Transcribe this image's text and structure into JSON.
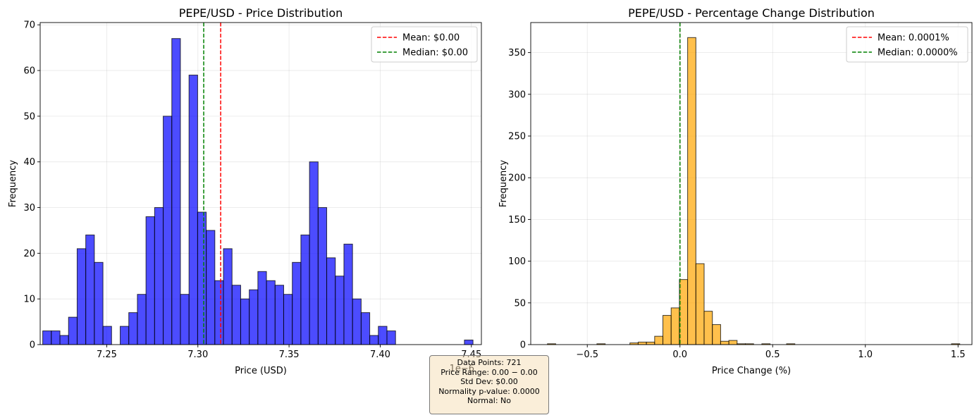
{
  "chart_data": [
    {
      "type": "bar",
      "title": "PEPE/USD - Price Distribution",
      "xlabel": "Price (USD)",
      "ylabel": "Frequency",
      "offset_label": "1e−6",
      "xlim": [
        7.2135,
        7.4555
      ],
      "ylim": [
        0,
        70.5
      ],
      "xticks": [
        7.25,
        7.3,
        7.35,
        7.4,
        7.45
      ],
      "xtick_labels": [
        "7.25",
        "7.30",
        "7.35",
        "7.40",
        "7.45"
      ],
      "yticks": [
        0,
        10,
        20,
        30,
        40,
        50,
        60,
        70
      ],
      "grid": true,
      "legend_position": "top-right",
      "bar_color": "#0000ff",
      "bin_start": 7.2149,
      "bin_width": 0.00472,
      "values": [
        3,
        3,
        2,
        6,
        21,
        24,
        18,
        4,
        0,
        4,
        7,
        11,
        28,
        30,
        50,
        67,
        11,
        59,
        29,
        25,
        14,
        21,
        13,
        10,
        12,
        16,
        14,
        13,
        11,
        18,
        24,
        40,
        30,
        19,
        15,
        22,
        10,
        7,
        2,
        4,
        3,
        0,
        0,
        0,
        0,
        0,
        0,
        0,
        0,
        1
      ],
      "reference_lines": [
        {
          "name": "Mean: $0.00",
          "x": 7.3125,
          "color": "#ff0000"
        },
        {
          "name": "Median: $0.00",
          "x": 7.3032,
          "color": "#008000"
        }
      ]
    },
    {
      "type": "bar",
      "title": "PEPE/USD - Percentage Change Distribution",
      "xlabel": "Price Change (%)",
      "ylabel": "Frequency",
      "xlim": [
        -0.805,
        1.575
      ],
      "ylim": [
        0,
        386
      ],
      "xticks": [
        -0.5,
        0.0,
        0.5,
        1.0,
        1.5
      ],
      "xtick_labels": [
        "−0.5",
        "0.0",
        "0.5",
        "1.0",
        "1.5"
      ],
      "yticks": [
        0,
        50,
        100,
        150,
        200,
        250,
        300,
        350
      ],
      "grid": true,
      "legend_position": "top-right",
      "bar_color": "#ffa500",
      "bin_start": -0.7148,
      "bin_width": 0.04448,
      "values": [
        1,
        0,
        0,
        0,
        0,
        0,
        1,
        0,
        0,
        0,
        2,
        3,
        3,
        10,
        35,
        44,
        78,
        368,
        97,
        40,
        24,
        4,
        5,
        1,
        1,
        0,
        1,
        0,
        0,
        1,
        0,
        0,
        0,
        0,
        0,
        0,
        0,
        0,
        0,
        0,
        0,
        0,
        0,
        0,
        0,
        0,
        0,
        0,
        0,
        1
      ],
      "reference_lines": [
        {
          "name": "Mean: 0.0001%",
          "x": 0.0001,
          "color": "#ff0000"
        },
        {
          "name": "Median: 0.0000%",
          "x": 0.0,
          "color": "#008000"
        }
      ]
    }
  ],
  "stats_box": {
    "line1": "Data Points: 721",
    "line2": "Price Range: 0.00 − 0.00",
    "line3": "Std Dev: $0.00",
    "line4": "Normality p-value: 0.0000",
    "line5": "Normal: No"
  }
}
